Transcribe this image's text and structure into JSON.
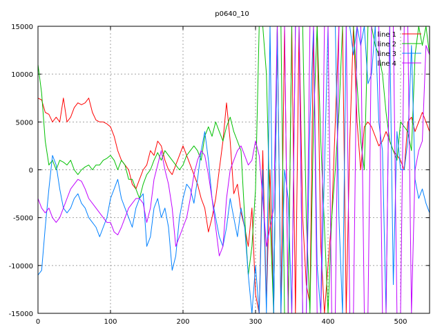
{
  "chart_data": {
    "type": "line",
    "title": "p0640_10",
    "xlabel": "",
    "ylabel": "",
    "xlim": [
      0,
      540
    ],
    "ylim": [
      -15000,
      15000
    ],
    "x_ticks": [
      0,
      100,
      200,
      300,
      400,
      500
    ],
    "y_ticks": [
      -15000,
      -10000,
      -5000,
      0,
      5000,
      10000,
      15000
    ],
    "grid": true,
    "legend_position": "top-right",
    "series": [
      {
        "name": "line 1",
        "color": "#ff0000",
        "x": [
          0,
          5,
          10,
          15,
          20,
          25,
          30,
          35,
          40,
          45,
          50,
          55,
          60,
          65,
          70,
          75,
          80,
          85,
          90,
          95,
          100,
          105,
          110,
          115,
          120,
          125,
          130,
          135,
          140,
          145,
          150,
          155,
          160,
          165,
          170,
          175,
          180,
          185,
          190,
          195,
          200,
          205,
          210,
          215,
          220,
          225,
          230,
          235,
          240,
          245,
          250,
          255,
          260,
          265,
          270,
          275,
          280,
          285,
          290,
          295,
          300,
          305,
          310,
          315,
          320,
          325,
          330,
          335,
          340,
          345,
          350,
          355,
          360,
          365,
          370,
          375,
          380,
          385,
          390,
          395,
          400,
          405,
          410,
          415,
          420,
          425,
          430,
          435,
          440,
          445,
          450,
          455,
          460,
          465,
          470,
          475,
          480,
          485,
          490,
          495,
          500,
          505,
          510,
          515,
          520,
          525,
          530,
          535,
          540
        ],
        "y": [
          7500,
          7300,
          6000,
          5800,
          5000,
          5500,
          5000,
          7500,
          5000,
          5500,
          6500,
          7000,
          6800,
          7000,
          7500,
          6000,
          5200,
          5000,
          5000,
          4800,
          4500,
          3500,
          2000,
          1000,
          500,
          0,
          -1500,
          -2000,
          -1000,
          0,
          500,
          2000,
          1500,
          3000,
          2500,
          1000,
          0,
          -500,
          500,
          1500,
          2500,
          1500,
          500,
          -500,
          -1500,
          -3000,
          -4000,
          -6500,
          -5000,
          -3000,
          0,
          3000,
          7000,
          3000,
          -2500,
          -1500,
          -4500,
          -6000,
          -8000,
          -4000,
          -13000,
          -15000,
          2000,
          -14000,
          0,
          -15000,
          15000,
          -15000,
          15000,
          -15000,
          15000,
          -15000,
          15000,
          -5000,
          -12000,
          -14000,
          15000,
          15000,
          -8000,
          -15000,
          -10000,
          -5000,
          5000,
          15000,
          15000,
          -15000,
          3000,
          15000,
          5000,
          0,
          4500,
          5000,
          4500,
          3500,
          2500,
          3000,
          4000,
          3000,
          2000,
          1500,
          1000,
          0,
          5000,
          5500,
          4000,
          5000,
          6000,
          5000,
          4000
        ]
      },
      {
        "name": "line 2",
        "color": "#00c000",
        "x": [
          0,
          5,
          10,
          15,
          20,
          25,
          30,
          35,
          40,
          45,
          50,
          55,
          60,
          65,
          70,
          75,
          80,
          85,
          90,
          95,
          100,
          105,
          110,
          115,
          120,
          125,
          130,
          135,
          140,
          145,
          150,
          155,
          160,
          165,
          170,
          175,
          180,
          185,
          190,
          195,
          200,
          205,
          210,
          215,
          220,
          225,
          230,
          235,
          240,
          245,
          250,
          255,
          260,
          265,
          270,
          275,
          280,
          285,
          290,
          295,
          300,
          305,
          310,
          315,
          320,
          325,
          330,
          335,
          340,
          345,
          350,
          355,
          360,
          365,
          370,
          375,
          380,
          385,
          390,
          395,
          400,
          405,
          410,
          415,
          420,
          425,
          430,
          435,
          440,
          445,
          450,
          455,
          460,
          465,
          470,
          475,
          480,
          485,
          490,
          495,
          500,
          505,
          510,
          515,
          520,
          525,
          530,
          535,
          540
        ],
        "y": [
          11000,
          8000,
          3000,
          500,
          1000,
          0,
          1000,
          800,
          500,
          1000,
          0,
          -500,
          0,
          300,
          500,
          0,
          500,
          500,
          1000,
          1200,
          1500,
          1000,
          0,
          1000,
          500,
          -1000,
          -1000,
          -2000,
          -3000,
          -1500,
          -500,
          0,
          1000,
          1800,
          1000,
          2000,
          1500,
          1000,
          500,
          0,
          500,
          1500,
          2000,
          2500,
          2000,
          1000,
          3500,
          4500,
          3500,
          5000,
          4000,
          3000,
          4500,
          5500,
          4000,
          3000,
          2000,
          -5000,
          -11000,
          -8000,
          -2000,
          15000,
          15000,
          10000,
          -5000,
          -15000,
          15000,
          15000,
          -15000,
          -15000,
          15000,
          15000,
          15000,
          15000,
          -5000,
          -15000,
          5000,
          15000,
          3000,
          -6000,
          -15000,
          -5000,
          0,
          6000,
          15000,
          15000,
          15000,
          15000,
          9000,
          3000,
          0,
          15000,
          15000,
          13000,
          12000,
          10000,
          6000,
          3000,
          2000,
          1000,
          5000,
          4500,
          4000,
          2000,
          12000,
          15000,
          13000,
          15000,
          12000
        ]
      },
      {
        "name": "line 3",
        "color": "#0080ff",
        "x": [
          0,
          5,
          10,
          15,
          20,
          25,
          30,
          35,
          40,
          45,
          50,
          55,
          60,
          65,
          70,
          75,
          80,
          85,
          90,
          95,
          100,
          105,
          110,
          115,
          120,
          125,
          130,
          135,
          140,
          145,
          150,
          155,
          160,
          165,
          170,
          175,
          180,
          185,
          190,
          195,
          200,
          205,
          210,
          215,
          220,
          225,
          230,
          235,
          240,
          245,
          250,
          255,
          260,
          265,
          270,
          275,
          280,
          285,
          290,
          295,
          300,
          305,
          310,
          315,
          320,
          325,
          330,
          335,
          340,
          345,
          350,
          355,
          360,
          365,
          370,
          375,
          380,
          385,
          390,
          395,
          400,
          405,
          410,
          415,
          420,
          425,
          430,
          435,
          440,
          445,
          450,
          455,
          460,
          465,
          470,
          475,
          480,
          485,
          490,
          495,
          500,
          505,
          510,
          515,
          520,
          525,
          530,
          535,
          540
        ],
        "y": [
          -11000,
          -10500,
          -6000,
          -2000,
          1500,
          500,
          -2000,
          -4000,
          -4500,
          -4000,
          -3000,
          -2500,
          -3500,
          -4000,
          -5000,
          -5500,
          -6000,
          -7000,
          -6000,
          -5000,
          -3000,
          -2000,
          -1000,
          -3000,
          -4000,
          -5000,
          -6000,
          -4000,
          -3000,
          -2500,
          -8000,
          -7000,
          -4000,
          -3000,
          -5000,
          -4000,
          -6000,
          -10500,
          -9000,
          -5000,
          -3000,
          -1500,
          -2000,
          -3500,
          -1000,
          2000,
          4000,
          1000,
          -3000,
          -5000,
          -7000,
          -8000,
          -6000,
          -3000,
          -5000,
          -7000,
          -4000,
          -6000,
          -11000,
          -15000,
          -10000,
          -15000,
          0,
          -15000,
          15000,
          -15000,
          15000,
          -15000,
          0,
          -3000,
          -15000,
          15000,
          15000,
          -15000,
          -15000,
          5000,
          15000,
          -10000,
          -15000,
          0,
          15000,
          15000,
          15000,
          -5000,
          -15000,
          15000,
          15000,
          12000,
          15000,
          13000,
          15000,
          9000,
          10000,
          15000,
          5000,
          2000,
          -15000,
          15000,
          -12000,
          4000,
          0,
          0,
          3000,
          13000,
          -1000,
          -3000,
          -2000,
          -3500,
          -4500
        ]
      },
      {
        "name": "line 4",
        "color": "#c000ff",
        "x": [
          0,
          5,
          10,
          15,
          20,
          25,
          30,
          35,
          40,
          45,
          50,
          55,
          60,
          65,
          70,
          75,
          80,
          85,
          90,
          95,
          100,
          105,
          110,
          115,
          120,
          125,
          130,
          135,
          140,
          145,
          150,
          155,
          160,
          165,
          170,
          175,
          180,
          185,
          190,
          195,
          200,
          205,
          210,
          215,
          220,
          225,
          230,
          235,
          240,
          245,
          250,
          255,
          260,
          265,
          270,
          275,
          280,
          285,
          290,
          295,
          300,
          305,
          310,
          315,
          320,
          325,
          330,
          335,
          340,
          345,
          350,
          355,
          360,
          365,
          370,
          375,
          380,
          385,
          390,
          395,
          400,
          405,
          410,
          415,
          420,
          425,
          430,
          435,
          440,
          445,
          450,
          455,
          460,
          465,
          470,
          475,
          480,
          485,
          490,
          495,
          500,
          505,
          510,
          515,
          520,
          525,
          530,
          535,
          540
        ],
        "y": [
          -3000,
          -4000,
          -4500,
          -4000,
          -5000,
          -5500,
          -5000,
          -4000,
          -3000,
          -2000,
          -1500,
          -1000,
          -1200,
          -2000,
          -3000,
          -3500,
          -4000,
          -4500,
          -5000,
          -5500,
          -5500,
          -6500,
          -6800,
          -6000,
          -5000,
          -4000,
          -3500,
          -3000,
          -3000,
          -3500,
          -5500,
          -4000,
          -1000,
          500,
          2000,
          0,
          -1500,
          -4000,
          -8000,
          -7000,
          -6000,
          -5000,
          -3000,
          -500,
          1000,
          2000,
          1500,
          -500,
          -3000,
          -6000,
          -9000,
          -8000,
          -3000,
          0,
          1000,
          2000,
          2500,
          1500,
          500,
          1000,
          3000,
          1500,
          -3000,
          -8000,
          -6000,
          -4000,
          15000,
          15000,
          15000,
          -15000,
          -15000,
          15000,
          15000,
          -15000,
          -15000,
          15000,
          15000,
          -15000,
          -15000,
          15000,
          15000,
          -15000,
          -15000,
          15000,
          15000,
          15000,
          -15000,
          -15000,
          15000,
          15000,
          -15000,
          -15000,
          15000,
          15000,
          15000,
          -15000,
          -15000,
          15000,
          15000,
          -15000,
          -15000,
          15000,
          15000,
          -15000,
          0,
          2000,
          3000,
          13000,
          12000
        ]
      }
    ]
  }
}
